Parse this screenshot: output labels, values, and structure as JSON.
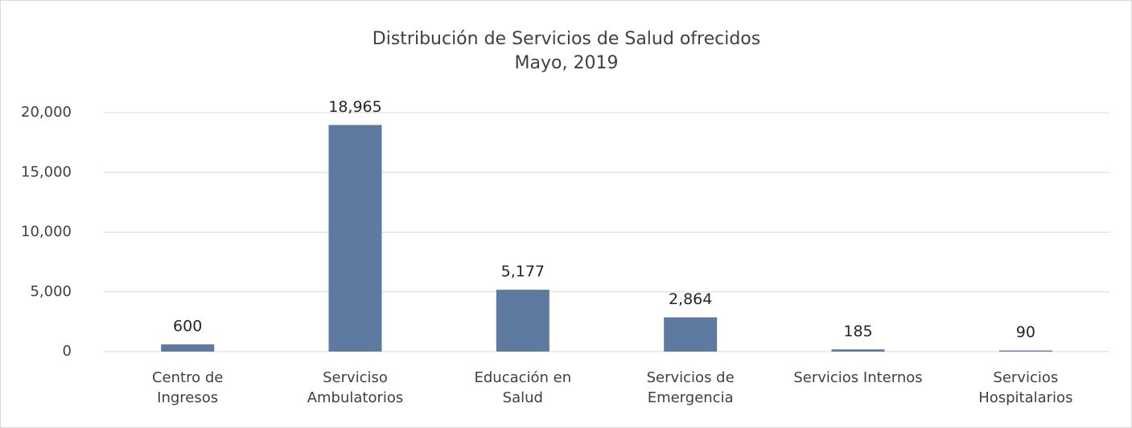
{
  "chart_data": {
    "type": "bar",
    "title": "Distribución de Servicios de Salud ofrecidos",
    "subtitle": "Mayo, 2019",
    "categories": [
      "Centro de\nIngresos",
      "Serviciso\nAmbulatorios",
      "Educación en\nSalud",
      "Servicios de\nEmergencia",
      "Servicios Internos",
      "Servicios\nHospitalarios"
    ],
    "values": [
      600,
      18965,
      5177,
      2864,
      185,
      90
    ],
    "value_labels": [
      "600",
      "18,965",
      "5,177",
      "2,864",
      "185",
      "90"
    ],
    "color": "#5f7aa0",
    "ylim": [
      0,
      20000
    ],
    "yticks": [
      0,
      {
        "value": 5000,
        "label": "5,000"
      },
      {
        "value": 10000,
        "label": "10,000"
      },
      {
        "value": 15000,
        "label": "15,000"
      },
      {
        "value": 20000,
        "label": "20,000"
      }
    ],
    "grid": true
  }
}
